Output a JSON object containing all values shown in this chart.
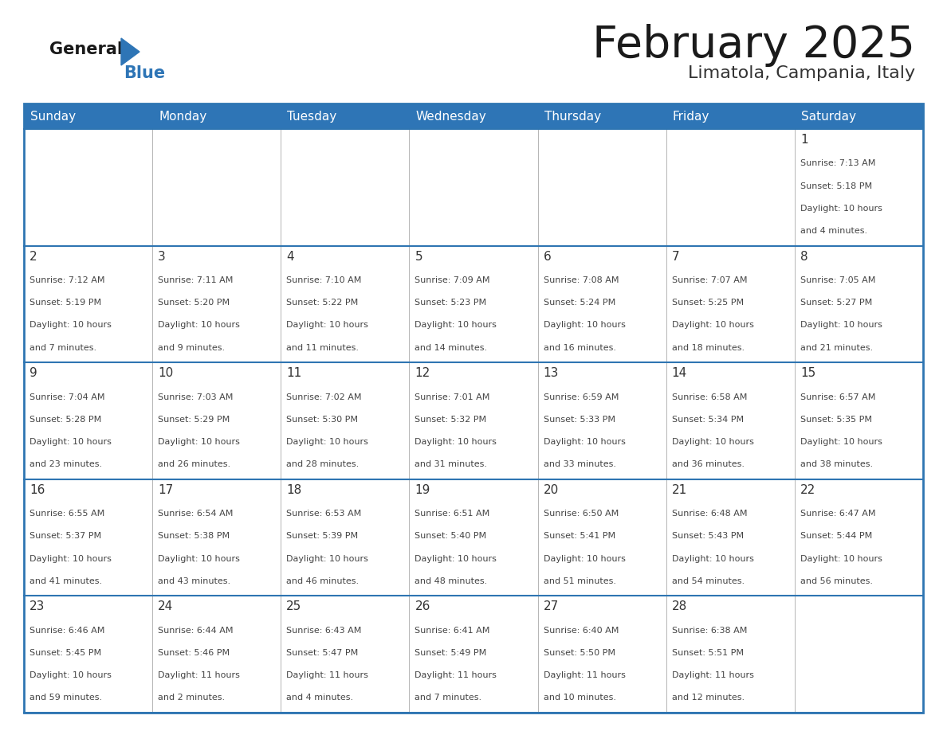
{
  "title": "February 2025",
  "subtitle": "Limatola, Campania, Italy",
  "header_bg": "#2E75B6",
  "header_text_color": "#FFFFFF",
  "day_names": [
    "Sunday",
    "Monday",
    "Tuesday",
    "Wednesday",
    "Thursday",
    "Friday",
    "Saturday"
  ],
  "grid_line_color": "#2E75B2",
  "text_color": "#444444",
  "days": [
    {
      "day": 1,
      "col": 6,
      "row": 0,
      "sunrise": "7:13 AM",
      "sunset": "5:18 PM",
      "daylight": "10 hours and 4 minutes."
    },
    {
      "day": 2,
      "col": 0,
      "row": 1,
      "sunrise": "7:12 AM",
      "sunset": "5:19 PM",
      "daylight": "10 hours and 7 minutes."
    },
    {
      "day": 3,
      "col": 1,
      "row": 1,
      "sunrise": "7:11 AM",
      "sunset": "5:20 PM",
      "daylight": "10 hours and 9 minutes."
    },
    {
      "day": 4,
      "col": 2,
      "row": 1,
      "sunrise": "7:10 AM",
      "sunset": "5:22 PM",
      "daylight": "10 hours and 11 minutes."
    },
    {
      "day": 5,
      "col": 3,
      "row": 1,
      "sunrise": "7:09 AM",
      "sunset": "5:23 PM",
      "daylight": "10 hours and 14 minutes."
    },
    {
      "day": 6,
      "col": 4,
      "row": 1,
      "sunrise": "7:08 AM",
      "sunset": "5:24 PM",
      "daylight": "10 hours and 16 minutes."
    },
    {
      "day": 7,
      "col": 5,
      "row": 1,
      "sunrise": "7:07 AM",
      "sunset": "5:25 PM",
      "daylight": "10 hours and 18 minutes."
    },
    {
      "day": 8,
      "col": 6,
      "row": 1,
      "sunrise": "7:05 AM",
      "sunset": "5:27 PM",
      "daylight": "10 hours and 21 minutes."
    },
    {
      "day": 9,
      "col": 0,
      "row": 2,
      "sunrise": "7:04 AM",
      "sunset": "5:28 PM",
      "daylight": "10 hours and 23 minutes."
    },
    {
      "day": 10,
      "col": 1,
      "row": 2,
      "sunrise": "7:03 AM",
      "sunset": "5:29 PM",
      "daylight": "10 hours and 26 minutes."
    },
    {
      "day": 11,
      "col": 2,
      "row": 2,
      "sunrise": "7:02 AM",
      "sunset": "5:30 PM",
      "daylight": "10 hours and 28 minutes."
    },
    {
      "day": 12,
      "col": 3,
      "row": 2,
      "sunrise": "7:01 AM",
      "sunset": "5:32 PM",
      "daylight": "10 hours and 31 minutes."
    },
    {
      "day": 13,
      "col": 4,
      "row": 2,
      "sunrise": "6:59 AM",
      "sunset": "5:33 PM",
      "daylight": "10 hours and 33 minutes."
    },
    {
      "day": 14,
      "col": 5,
      "row": 2,
      "sunrise": "6:58 AM",
      "sunset": "5:34 PM",
      "daylight": "10 hours and 36 minutes."
    },
    {
      "day": 15,
      "col": 6,
      "row": 2,
      "sunrise": "6:57 AM",
      "sunset": "5:35 PM",
      "daylight": "10 hours and 38 minutes."
    },
    {
      "day": 16,
      "col": 0,
      "row": 3,
      "sunrise": "6:55 AM",
      "sunset": "5:37 PM",
      "daylight": "10 hours and 41 minutes."
    },
    {
      "day": 17,
      "col": 1,
      "row": 3,
      "sunrise": "6:54 AM",
      "sunset": "5:38 PM",
      "daylight": "10 hours and 43 minutes."
    },
    {
      "day": 18,
      "col": 2,
      "row": 3,
      "sunrise": "6:53 AM",
      "sunset": "5:39 PM",
      "daylight": "10 hours and 46 minutes."
    },
    {
      "day": 19,
      "col": 3,
      "row": 3,
      "sunrise": "6:51 AM",
      "sunset": "5:40 PM",
      "daylight": "10 hours and 48 minutes."
    },
    {
      "day": 20,
      "col": 4,
      "row": 3,
      "sunrise": "6:50 AM",
      "sunset": "5:41 PM",
      "daylight": "10 hours and 51 minutes."
    },
    {
      "day": 21,
      "col": 5,
      "row": 3,
      "sunrise": "6:48 AM",
      "sunset": "5:43 PM",
      "daylight": "10 hours and 54 minutes."
    },
    {
      "day": 22,
      "col": 6,
      "row": 3,
      "sunrise": "6:47 AM",
      "sunset": "5:44 PM",
      "daylight": "10 hours and 56 minutes."
    },
    {
      "day": 23,
      "col": 0,
      "row": 4,
      "sunrise": "6:46 AM",
      "sunset": "5:45 PM",
      "daylight": "10 hours and 59 minutes."
    },
    {
      "day": 24,
      "col": 1,
      "row": 4,
      "sunrise": "6:44 AM",
      "sunset": "5:46 PM",
      "daylight": "11 hours and 2 minutes."
    },
    {
      "day": 25,
      "col": 2,
      "row": 4,
      "sunrise": "6:43 AM",
      "sunset": "5:47 PM",
      "daylight": "11 hours and 4 minutes."
    },
    {
      "day": 26,
      "col": 3,
      "row": 4,
      "sunrise": "6:41 AM",
      "sunset": "5:49 PM",
      "daylight": "11 hours and 7 minutes."
    },
    {
      "day": 27,
      "col": 4,
      "row": 4,
      "sunrise": "6:40 AM",
      "sunset": "5:50 PM",
      "daylight": "11 hours and 10 minutes."
    },
    {
      "day": 28,
      "col": 5,
      "row": 4,
      "sunrise": "6:38 AM",
      "sunset": "5:51 PM",
      "daylight": "11 hours and 12 minutes."
    }
  ]
}
